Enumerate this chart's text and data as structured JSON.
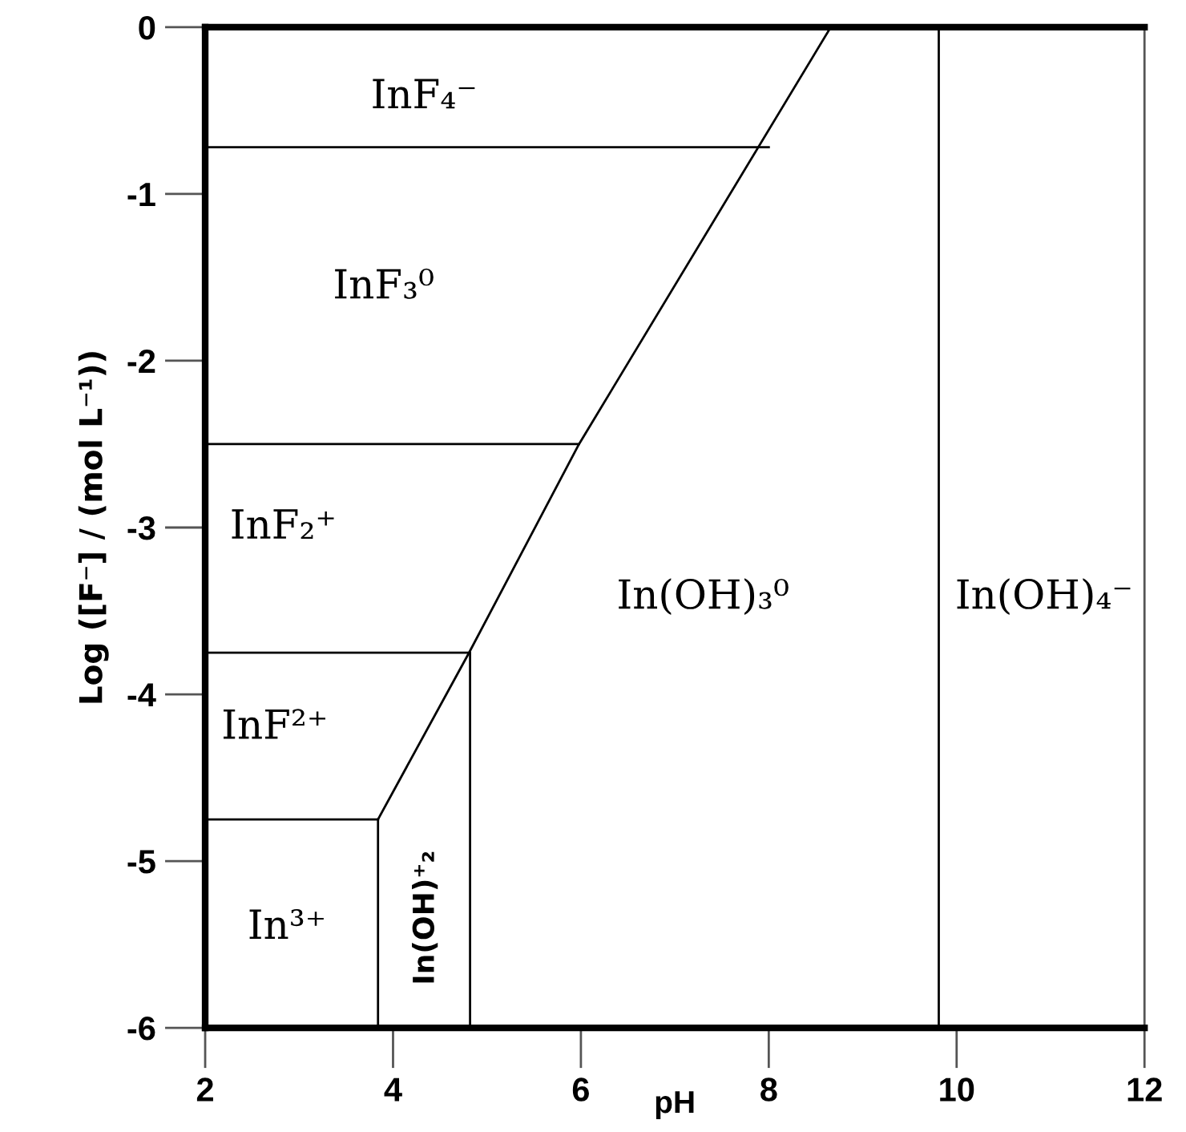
{
  "chart_data": {
    "type": "line",
    "xlabel": "pH",
    "ylabel": "Log ([F⁻] / (mol L⁻¹))",
    "xlim": [
      2,
      12
    ],
    "ylim": [
      -6,
      0
    ],
    "xticks": [
      2,
      4,
      6,
      8,
      10,
      12
    ],
    "yticks": [
      0,
      {
        "value": -1,
        "label": "-1"
      },
      {
        "value": -2,
        "label": "-2"
      },
      {
        "value": -3,
        "label": "-3"
      },
      {
        "value": -4,
        "label": "-4"
      },
      {
        "value": -5,
        "label": "-5"
      },
      {
        "value": -6,
        "label": "-6"
      }
    ],
    "grid": false,
    "marker": "none",
    "line_style": "solid",
    "series": [
      {
        "color": "#000000",
        "x": [
          2,
          8.0
        ],
        "values": [
          -0.72,
          -0.72
        ]
      },
      {
        "color": "#000000",
        "x": [
          2,
          5.98
        ],
        "values": [
          -2.5,
          -2.5
        ]
      },
      {
        "color": "#000000",
        "x": [
          2,
          4.81
        ],
        "values": [
          -3.75,
          -3.75
        ]
      },
      {
        "color": "#000000",
        "x": [
          2,
          3.84
        ],
        "values": [
          -4.75,
          -4.75
        ]
      },
      {
        "color": "#000000",
        "x": [
          3.84,
          4.81,
          5.98,
          8.66
        ],
        "values": [
          -4.75,
          -3.75,
          -2.5,
          0
        ]
      },
      {
        "color": "#000000",
        "x": [
          3.84,
          3.84
        ],
        "values": [
          -4.75,
          -6
        ]
      },
      {
        "color": "#000000",
        "x": [
          4.82,
          4.82
        ],
        "values": [
          -3.75,
          -6
        ]
      },
      {
        "color": "#000000",
        "x": [
          9.81,
          9.81
        ],
        "values": [
          0,
          -6
        ]
      }
    ],
    "annotations": [
      "InF₄⁻",
      "InF₃⁰",
      "InF₂⁺",
      "InF²⁺",
      "In³⁺",
      "In(OH)⁺₂",
      "In(OH)₃⁰",
      "In(OH)₄⁻"
    ]
  }
}
